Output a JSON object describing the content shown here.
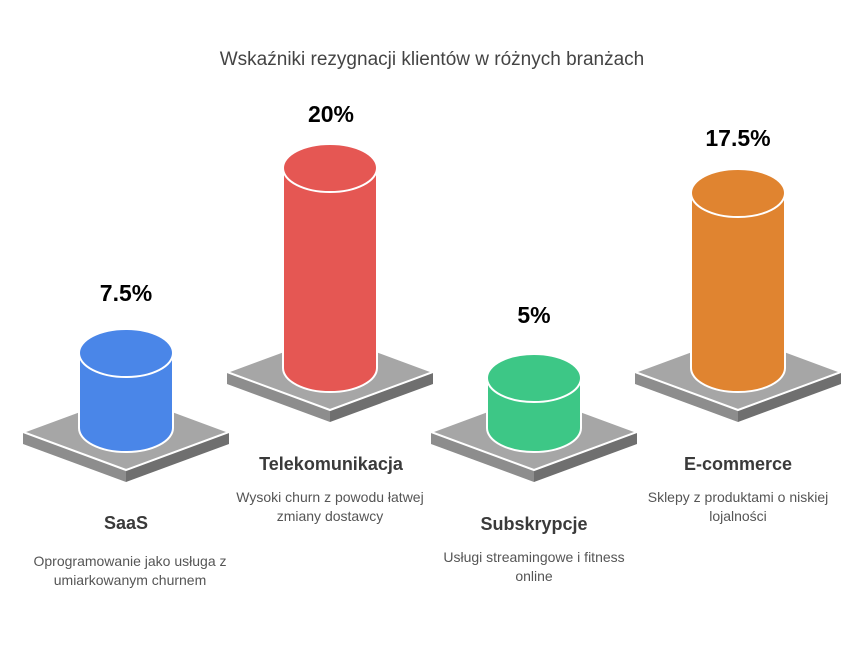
{
  "chart_data": {
    "type": "bar",
    "title": "Wskaźniki rezygnacji klientów w różnych branżach",
    "categories": [
      "SaaS",
      "Telekomunikacja",
      "Subskrypcje",
      "E-commerce"
    ],
    "values": [
      7.5,
      20,
      5,
      17.5
    ],
    "value_labels": [
      "7.5%",
      "20%",
      "5%",
      "17.5%"
    ],
    "descriptions": [
      "Oprogramowanie jako usługa z umiarkowanym churnem",
      "Wysoki churn z powodu łatwej zmiany dostawcy",
      "Usługi streamingowe i fitness online",
      "Sklepy z produktami o niskiej lojalności"
    ],
    "colors": [
      "#4a86e8",
      "#e55753",
      "#3dc786",
      "#e08430"
    ]
  }
}
